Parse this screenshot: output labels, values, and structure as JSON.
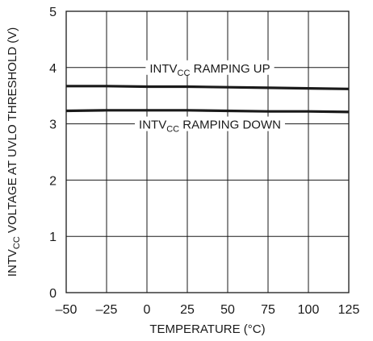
{
  "chart_data": {
    "type": "line",
    "xlabel": "TEMPERATURE (°C)",
    "ylabel_parts": {
      "pre": "INTV",
      "sub": "CC",
      "post": " VOLTAGE AT UVLO THRESHOLD (V)"
    },
    "xlim": [
      -50,
      125
    ],
    "ylim": [
      0,
      5
    ],
    "x_ticks": [
      "–50",
      "–25",
      "0",
      "25",
      "50",
      "75",
      "100",
      "125"
    ],
    "y_ticks": [
      "0",
      "1",
      "2",
      "3",
      "4",
      "5"
    ],
    "grid": true,
    "series": [
      {
        "label_parts": {
          "pre": "INTV",
          "sub": "CC",
          "post": " RAMPING UP"
        },
        "x": [
          -50,
          -25,
          0,
          25,
          50,
          75,
          100,
          125
        ],
        "values": [
          3.67,
          3.67,
          3.66,
          3.66,
          3.65,
          3.64,
          3.63,
          3.62
        ]
      },
      {
        "label_parts": {
          "pre": "INTV",
          "sub": "CC",
          "post": " RAMPING DOWN"
        },
        "x": [
          -50,
          -25,
          0,
          25,
          50,
          75,
          100,
          125
        ],
        "values": [
          3.23,
          3.24,
          3.24,
          3.24,
          3.23,
          3.22,
          3.22,
          3.21
        ]
      }
    ],
    "line_color": "#1a1a1a",
    "grid_color": "#1a1a1a"
  }
}
